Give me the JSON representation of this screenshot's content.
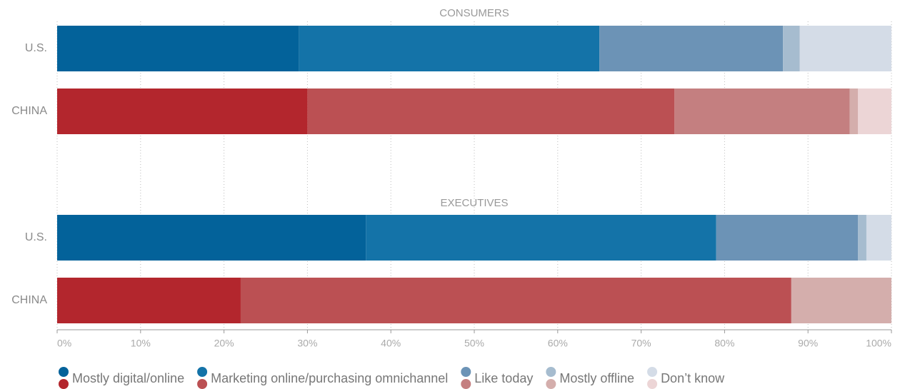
{
  "chart_data": {
    "type": "stacked-bar-horizontal",
    "xlim": [
      0,
      100
    ],
    "xticks": [
      {
        "value": 0,
        "label": "0%"
      },
      {
        "value": 10,
        "label": "10%"
      },
      {
        "value": 20,
        "label": "20%"
      },
      {
        "value": 30,
        "label": "30%"
      },
      {
        "value": 40,
        "label": "40%"
      },
      {
        "value": 50,
        "label": "50%"
      },
      {
        "value": 60,
        "label": "60%"
      },
      {
        "value": 70,
        "label": "70%"
      },
      {
        "value": 80,
        "label": "80%"
      },
      {
        "value": 90,
        "label": "90%"
      },
      {
        "value": 100,
        "label": "100%"
      }
    ],
    "grid": true,
    "legend": "bottom",
    "series": [
      {
        "name": "Mostly digital/online",
        "colors": [
          "#03629a",
          "#b3262d"
        ]
      },
      {
        "name": "Marketing online/purchasing omnichannel",
        "colors": [
          "#1473a8",
          "#bb5053"
        ]
      },
      {
        "name": "Like today",
        "colors": [
          "#6c93b6",
          "#c47f80"
        ]
      },
      {
        "name": "Mostly offline",
        "colors": [
          "#a6bccf",
          "#d4aeac"
        ]
      },
      {
        "name": "Don’t know",
        "colors": [
          "#d4dce7",
          "#ecd5d6"
        ]
      }
    ],
    "panels": [
      {
        "title": "CONSUMERS",
        "categories": [
          "U.S.",
          "CHINA"
        ],
        "values": [
          [
            29,
            30
          ],
          [
            36,
            44
          ],
          [
            22,
            21
          ],
          [
            2,
            1
          ],
          [
            11,
            4
          ]
        ]
      },
      {
        "title": "EXECUTIVES",
        "categories": [
          "U.S.",
          "CHINA"
        ],
        "values": [
          [
            37,
            22
          ],
          [
            42,
            66
          ],
          [
            17,
            0
          ],
          [
            1,
            12
          ],
          [
            3,
            0
          ]
        ]
      }
    ]
  }
}
